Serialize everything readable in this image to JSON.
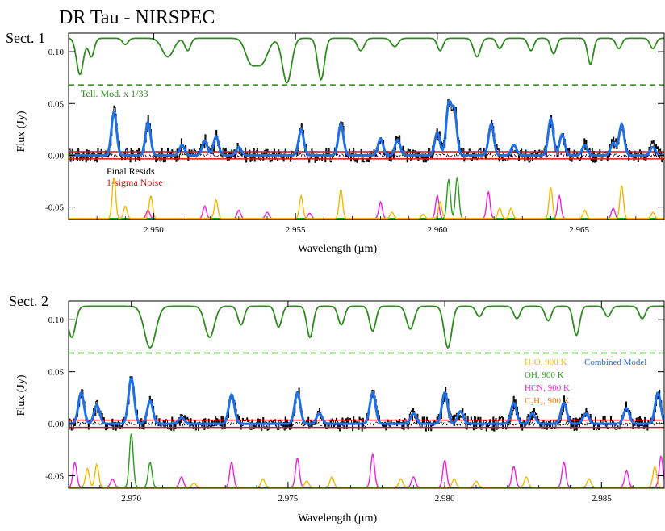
{
  "figure": {
    "title": "DR Tau - NIRSPEC",
    "xlabel": "Wavelength (µm)",
    "ylabel": "Flux (Jy)"
  },
  "colors": {
    "telluric": "#2e8b1e",
    "data": "#000000",
    "combined": "#1e6fe8",
    "noise": "#e01010",
    "h2o": "#f5b800",
    "oh": "#2e9b1e",
    "hcn": "#ee22dd",
    "c2h2": "#f07a10"
  },
  "chart_data": [
    {
      "type": "line",
      "section_label": "Sect. 1",
      "xlim": [
        2.947,
        2.968
      ],
      "ylim": [
        -0.062,
        0.118
      ],
      "x_ticks": [
        2.95,
        2.955,
        2.96,
        2.965
      ],
      "x_tick_labels": [
        "2.950",
        "2.955",
        "2.960",
        "2.965"
      ],
      "y_ticks": [
        -0.05,
        0.0,
        0.05,
        0.1
      ],
      "y_tick_labels": [
        "-0.05",
        "0.00",
        "0.05",
        "0.10"
      ],
      "telluric_baseline": 0.068,
      "telluric_label": "Tell. Mod. x 1/33",
      "resid_label": "Final Resids",
      "noise_label": "1-sigma Noise",
      "telluric_lines": [
        [
          2.9474,
          0.035,
          0.00012
        ],
        [
          2.9478,
          0.018,
          0.0001
        ],
        [
          2.949,
          0.006,
          0.0001
        ],
        [
          2.9505,
          0.018,
          0.0002
        ],
        [
          2.9512,
          0.012,
          0.0001
        ],
        [
          2.9538,
          0.024,
          0.00022
        ],
        [
          2.9534,
          0.02,
          0.00018
        ],
        [
          2.9547,
          0.043,
          0.00016
        ],
        [
          2.9559,
          0.04,
          0.00012
        ],
        [
          2.9573,
          0.012,
          0.00012
        ],
        [
          2.9585,
          0.008,
          0.00012
        ],
        [
          2.9601,
          0.012,
          0.0001
        ],
        [
          2.9614,
          0.018,
          0.00012
        ],
        [
          2.9622,
          0.01,
          0.0001
        ],
        [
          2.9633,
          0.012,
          0.0001
        ],
        [
          2.9641,
          0.015,
          0.0001
        ],
        [
          2.9654,
          0.025,
          0.0001
        ],
        [
          2.9664,
          0.01,
          0.0001
        ],
        [
          2.9676,
          0.01,
          0.0001
        ]
      ],
      "emission_lines": [
        [
          "h2o",
          2.9486,
          0.042
        ],
        [
          "h2o",
          2.9498,
          0.032
        ],
        [
          "hcn",
          2.951,
          0.01
        ],
        [
          "hcn",
          2.9518,
          0.014
        ],
        [
          "h2o",
          2.9522,
          0.018
        ],
        [
          "hcn",
          2.953,
          0.008
        ],
        [
          "h2o",
          2.9552,
          0.025
        ],
        [
          "h2o",
          2.9566,
          0.03
        ],
        [
          "hcn",
          2.958,
          0.016
        ],
        [
          "h2o",
          2.9586,
          0.015
        ],
        [
          "hcn",
          2.96,
          0.022
        ],
        [
          "oh",
          2.9606,
          0.042
        ],
        [
          "h2o",
          2.9604,
          0.048
        ],
        [
          "hcn",
          2.9619,
          0.03
        ],
        [
          "h2o",
          2.9627,
          0.01
        ],
        [
          "h2o",
          2.964,
          0.035
        ],
        [
          "hcn",
          2.9644,
          0.02
        ],
        [
          "h2o",
          2.9652,
          0.01
        ],
        [
          "hcn",
          2.9662,
          0.012
        ],
        [
          "h2o",
          2.9665,
          0.03
        ],
        [
          "h2o",
          2.9676,
          0.008
        ]
      ],
      "species_lines": [
        [
          "h2o",
          2.9486,
          0.04
        ],
        [
          "h2o",
          2.949,
          0.012
        ],
        [
          "h2o",
          2.9499,
          0.022
        ],
        [
          "hcn",
          2.9498,
          0.008
        ],
        [
          "hcn",
          2.9518,
          0.012
        ],
        [
          "h2o",
          2.9522,
          0.018
        ],
        [
          "hcn",
          2.953,
          0.008
        ],
        [
          "hcn",
          2.954,
          0.006
        ],
        [
          "h2o",
          2.9552,
          0.022
        ],
        [
          "hcn",
          2.9555,
          0.005
        ],
        [
          "h2o",
          2.9566,
          0.028
        ],
        [
          "hcn",
          2.958,
          0.016
        ],
        [
          "h2o",
          2.9584,
          0.006
        ],
        [
          "h2o",
          2.9595,
          0.004
        ],
        [
          "hcn",
          2.96,
          0.022
        ],
        [
          "h2o",
          2.9601,
          0.016
        ],
        [
          "oh",
          2.9604,
          0.038
        ],
        [
          "oh",
          2.9607,
          0.04
        ],
        [
          "hcn",
          2.9618,
          0.026
        ],
        [
          "h2o",
          2.9622,
          0.01
        ],
        [
          "h2o",
          2.9626,
          0.01
        ],
        [
          "h2o",
          2.964,
          0.03
        ],
        [
          "hcn",
          2.9643,
          0.022
        ],
        [
          "h2o",
          2.9652,
          0.008
        ],
        [
          "hcn",
          2.9662,
          0.01
        ],
        [
          "h2o",
          2.9665,
          0.032
        ],
        [
          "h2o",
          2.9676,
          0.006
        ]
      ]
    },
    {
      "type": "line",
      "section_label": "Sect. 2",
      "xlim": [
        2.968,
        2.987
      ],
      "ylim": [
        -0.062,
        0.118
      ],
      "x_ticks": [
        2.97,
        2.975,
        2.98,
        2.985
      ],
      "x_tick_labels": [
        "2.970",
        "2.975",
        "2.980",
        "2.985"
      ],
      "y_ticks": [
        -0.05,
        0.0,
        0.05,
        0.1
      ],
      "y_tick_labels": [
        "-0.05",
        "0.00",
        "0.05",
        "0.10"
      ],
      "telluric_baseline": 0.068,
      "legend": {
        "species": [
          "H₂O, 900 K",
          "OH, 900 K",
          "HCN, 900 K",
          "C₂H₂, 900 K"
        ],
        "combined": "Combined Model"
      },
      "telluric_lines": [
        [
          2.9681,
          0.03,
          0.00012
        ],
        [
          2.9706,
          0.04,
          0.00018
        ],
        [
          2.9725,
          0.03,
          0.00015
        ],
        [
          2.9735,
          0.018,
          0.0001
        ],
        [
          2.9747,
          0.02,
          0.0001
        ],
        [
          2.9757,
          0.03,
          0.0001
        ],
        [
          2.9767,
          0.018,
          0.0001
        ],
        [
          2.9777,
          0.024,
          0.0001
        ],
        [
          2.9789,
          0.022,
          0.00012
        ],
        [
          2.9801,
          0.04,
          0.00012
        ],
        [
          2.9811,
          0.01,
          0.0001
        ],
        [
          2.9823,
          0.012,
          0.0001
        ],
        [
          2.9833,
          0.014,
          0.0001
        ],
        [
          2.9842,
          0.028,
          0.0001
        ],
        [
          2.9852,
          0.01,
          0.0001
        ],
        [
          2.9863,
          0.012,
          0.0001
        ]
      ],
      "emission_lines": [
        [
          "h2o",
          2.9684,
          0.03
        ],
        [
          "hcn",
          2.9689,
          0.018
        ],
        [
          "oh",
          2.97,
          0.044
        ],
        [
          "h2o",
          2.9706,
          0.022
        ],
        [
          "hcn",
          2.9716,
          0.006
        ],
        [
          "hcn",
          2.9732,
          0.028
        ],
        [
          "hcn",
          2.9753,
          0.03
        ],
        [
          "h2o",
          2.976,
          0.01
        ],
        [
          "hcn",
          2.9777,
          0.03
        ],
        [
          "h2o",
          2.979,
          0.01
        ],
        [
          "hcn",
          2.98,
          0.03
        ],
        [
          "h2o",
          2.9805,
          0.012
        ],
        [
          "hcn",
          2.9822,
          0.02
        ],
        [
          "h2o",
          2.9828,
          0.01
        ],
        [
          "hcn",
          2.9838,
          0.02
        ],
        [
          "h2o",
          2.9845,
          0.01
        ],
        [
          "hcn",
          2.9858,
          0.015
        ],
        [
          "h2o",
          2.9868,
          0.03
        ]
      ],
      "species_lines": [
        [
          "hcn",
          2.9682,
          0.024
        ],
        [
          "h2o",
          2.9686,
          0.018
        ],
        [
          "h2o",
          2.9689,
          0.022
        ],
        [
          "hcn",
          2.9694,
          0.008
        ],
        [
          "oh",
          2.97,
          0.052
        ],
        [
          "oh",
          2.9706,
          0.024
        ],
        [
          "hcn",
          2.9716,
          0.01
        ],
        [
          "h2o",
          2.972,
          0.004
        ],
        [
          "hcn",
          2.9732,
          0.024
        ],
        [
          "h2o",
          2.9742,
          0.008
        ],
        [
          "hcn",
          2.9753,
          0.028
        ],
        [
          "h2o",
          2.9756,
          0.006
        ],
        [
          "h2o",
          2.9764,
          0.01
        ],
        [
          "hcn",
          2.9777,
          0.032
        ],
        [
          "h2o",
          2.9786,
          0.008
        ],
        [
          "hcn",
          2.979,
          0.01
        ],
        [
          "hcn",
          2.98,
          0.026
        ],
        [
          "h2o",
          2.9803,
          0.008
        ],
        [
          "h2o",
          2.981,
          0.006
        ],
        [
          "hcn",
          2.9822,
          0.02
        ],
        [
          "h2o",
          2.9826,
          0.01
        ],
        [
          "hcn",
          2.9838,
          0.024
        ],
        [
          "h2o",
          2.9846,
          0.008
        ],
        [
          "hcn",
          2.9858,
          0.016
        ],
        [
          "h2o",
          2.9867,
          0.02
        ],
        [
          "hcn",
          2.9869,
          0.03
        ]
      ]
    }
  ]
}
